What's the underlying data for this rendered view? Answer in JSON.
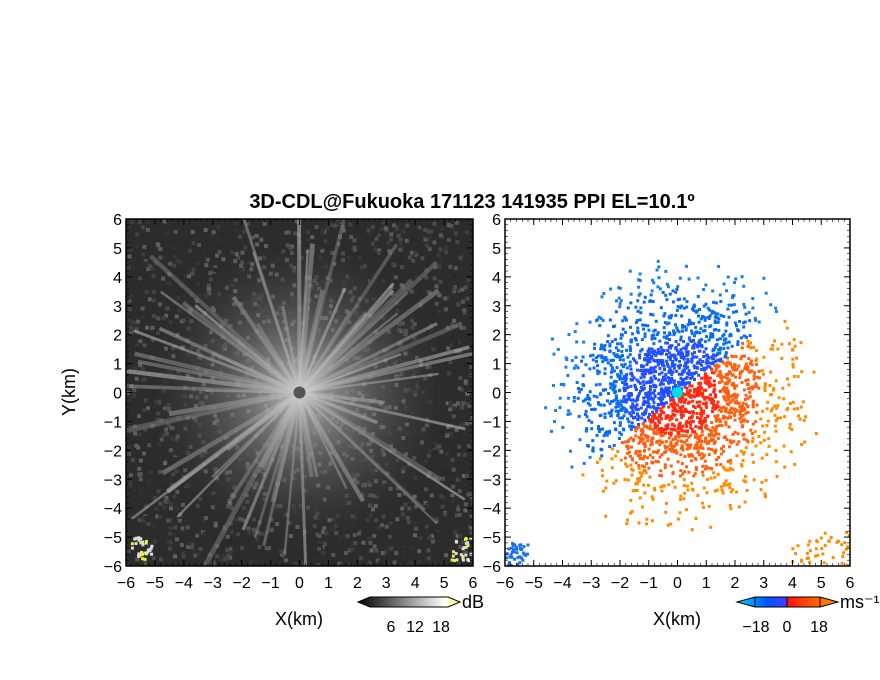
{
  "chart_data": [
    {
      "type": "heatmap",
      "panel": "reflectivity",
      "title": "3D-CDL@Fukuoka 171123 141935 PPI EL=10.1º",
      "xlabel": "X(km)",
      "ylabel": "Y(km)",
      "xlim": [
        -6,
        6
      ],
      "ylim": [
        -6,
        6
      ],
      "x_ticks": [
        "-6",
        "-5",
        "-4",
        "-3",
        "-2",
        "-1",
        "0",
        "1",
        "2",
        "3",
        "4",
        "5",
        "6"
      ],
      "y_ticks": [
        "6",
        "5",
        "4",
        "3",
        "2",
        "1",
        "0",
        "-1",
        "-2",
        "-3",
        "-4",
        "-5",
        "-6"
      ],
      "colorbar": {
        "unit": "dB",
        "ticks": [
          "6",
          "12",
          "18"
        ],
        "range": [
          0,
          24
        ],
        "colors": [
          "#000000",
          "#ffffff",
          "#ffff33"
        ]
      },
      "features": "radial streaks of higher intensity centered at origin, noisy dark background, yellow echoes in bottom-left and bottom-right corners"
    },
    {
      "type": "heatmap",
      "panel": "doppler_velocity",
      "xlabel": "X(km)",
      "xlim": [
        -6,
        6
      ],
      "ylim": [
        -6,
        6
      ],
      "x_ticks": [
        "-6",
        "-5",
        "-4",
        "-3",
        "-2",
        "-1",
        "0",
        "1",
        "2",
        "3",
        "4",
        "5",
        "6"
      ],
      "y_ticks": [
        "6",
        "5",
        "4",
        "3",
        "2",
        "1",
        "0",
        "-1",
        "-2",
        "-3",
        "-4",
        "-5",
        "-6"
      ],
      "colorbar": {
        "unit": "ms⁻¹",
        "ticks": [
          "−18",
          "0",
          "18"
        ],
        "range": [
          -24,
          24
        ],
        "colors": [
          "#00c8ff",
          "#0040ff",
          "#ff0000",
          "#ff8c00"
        ]
      },
      "features": "negative (blue) velocities to the northwest, positive (red/orange) velocities to the southeast, cyan marker at origin"
    }
  ]
}
